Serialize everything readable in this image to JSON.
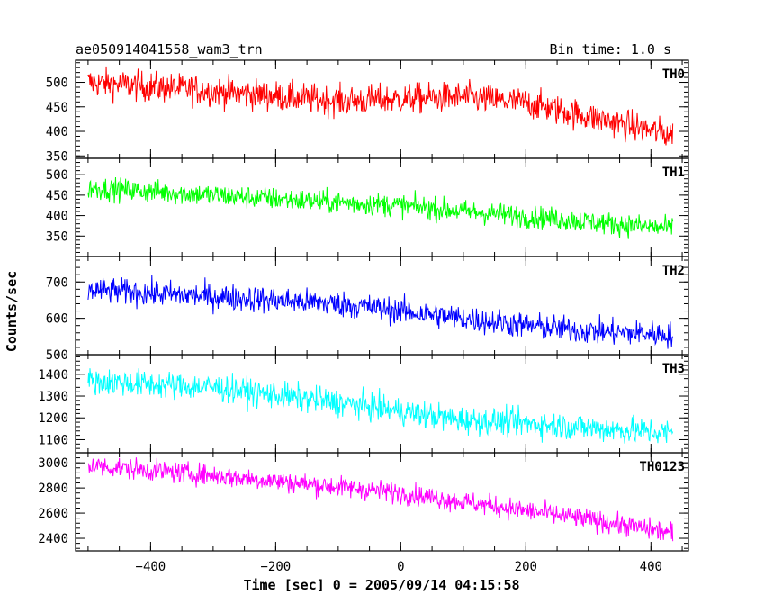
{
  "chart_data": {
    "type": "line",
    "title": "ae050914041558_wam3_trn",
    "subtitle": "Bin time: 1.0 s",
    "xlabel": "Time [sec] 0 = 2005/09/14 04:15:58",
    "ylabel": "Counts/sec",
    "xlim": [
      -520,
      460
    ],
    "xticks": [
      -400,
      -200,
      0,
      200,
      400
    ],
    "x_range": [
      -500,
      435
    ],
    "bin_time_s": 1.0,
    "grid": false,
    "panels": [
      {
        "name": "TH0",
        "color": "#ff0000",
        "ylim": [
          345,
          545
        ],
        "yticks": [
          350,
          400,
          450,
          500
        ],
        "trend": [
          [
            -500,
            500
          ],
          [
            -300,
            482
          ],
          [
            -100,
            462
          ],
          [
            100,
            470
          ],
          [
            200,
            458
          ],
          [
            300,
            430
          ],
          [
            435,
            392
          ]
        ],
        "noise": 22
      },
      {
        "name": "TH1",
        "color": "#00ff00",
        "ylim": [
          300,
          540
        ],
        "yticks": [
          350,
          400,
          450,
          500
        ],
        "trend": [
          [
            -500,
            468
          ],
          [
            -300,
            450
          ],
          [
            -100,
            432
          ],
          [
            0,
            425
          ],
          [
            100,
            410
          ],
          [
            200,
            398
          ],
          [
            300,
            385
          ],
          [
            435,
            368
          ]
        ],
        "noise": 20
      },
      {
        "name": "TH2",
        "color": "#0000ff",
        "ylim": [
          500,
          770
        ],
        "yticks": [
          500,
          600,
          700
        ],
        "trend": [
          [
            -500,
            678
          ],
          [
            -300,
            660
          ],
          [
            -100,
            640
          ],
          [
            0,
            620
          ],
          [
            100,
            600
          ],
          [
            200,
            580
          ],
          [
            300,
            565
          ],
          [
            435,
            555
          ]
        ],
        "noise": 26
      },
      {
        "name": "TH3",
        "color": "#00ffff",
        "ylim": [
          1040,
          1490
        ],
        "yticks": [
          1100,
          1200,
          1300,
          1400
        ],
        "trend": [
          [
            -500,
            1370
          ],
          [
            -300,
            1340
          ],
          [
            -100,
            1270
          ],
          [
            0,
            1230
          ],
          [
            100,
            1190
          ],
          [
            200,
            1175
          ],
          [
            300,
            1155
          ],
          [
            435,
            1130
          ]
        ],
        "noise": 45
      },
      {
        "name": "TH0123",
        "color": "#ff00ff",
        "ylim": [
          2300,
          3080
        ],
        "yticks": [
          2400,
          2600,
          2800,
          3000
        ],
        "trend": [
          [
            -500,
            2980
          ],
          [
            -300,
            2900
          ],
          [
            -100,
            2810
          ],
          [
            0,
            2760
          ],
          [
            100,
            2690
          ],
          [
            200,
            2620
          ],
          [
            300,
            2550
          ],
          [
            435,
            2440
          ]
        ],
        "noise": 60
      }
    ]
  }
}
